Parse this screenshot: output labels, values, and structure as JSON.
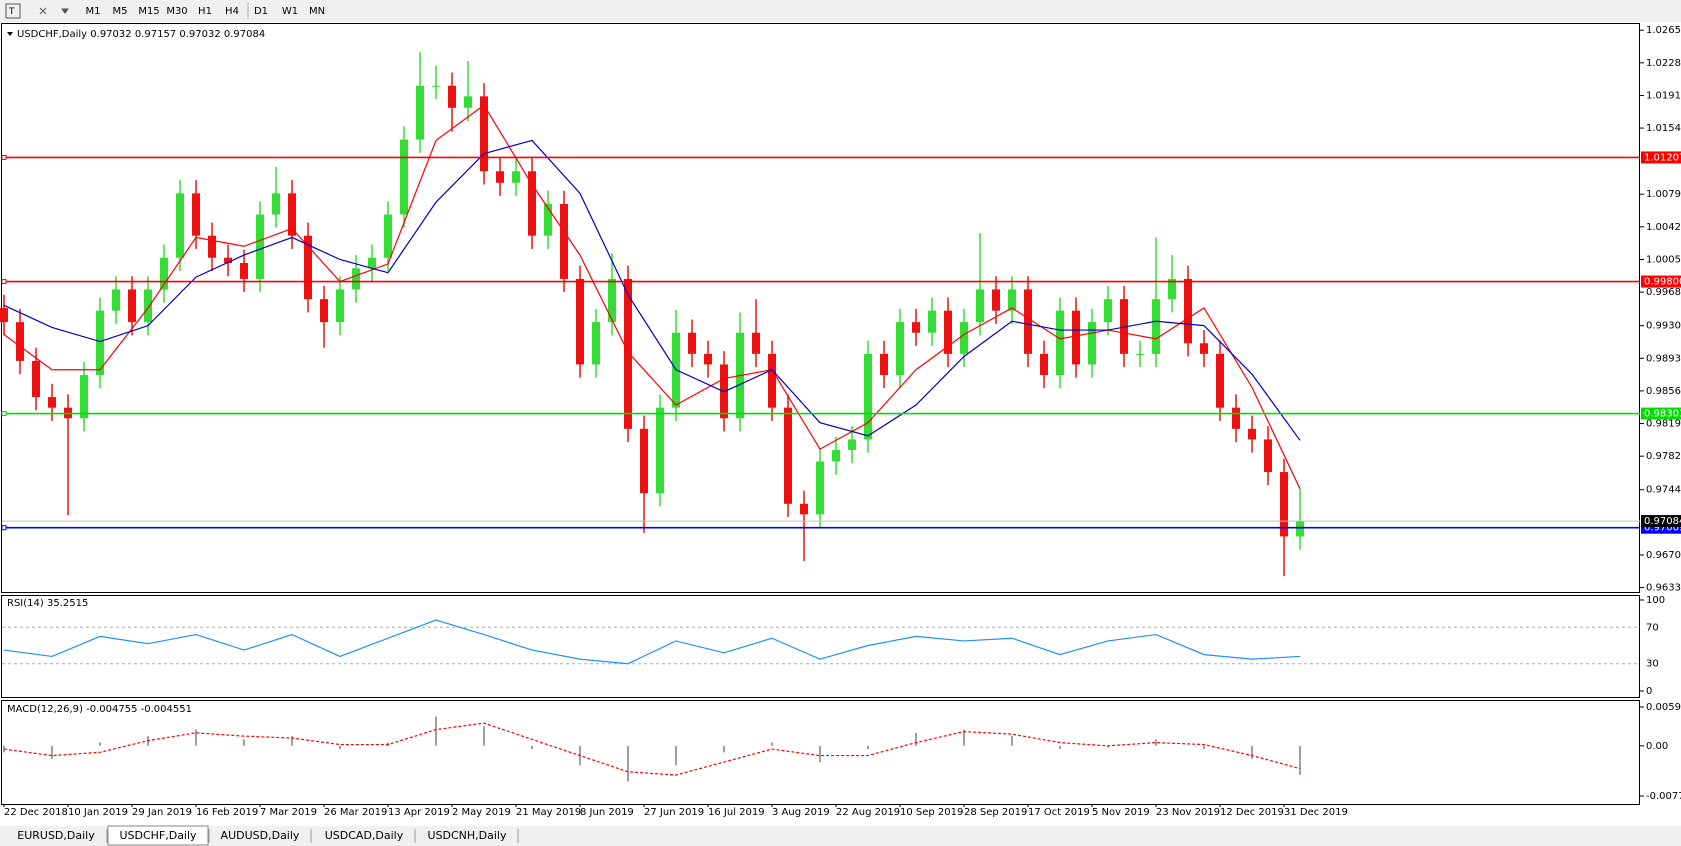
{
  "toolbar": {
    "timeframes": [
      "M1",
      "M5",
      "M15",
      "M30",
      "H1",
      "H4",
      "D1",
      "W1",
      "MN"
    ]
  },
  "tabs": [
    "EURUSD,Daily",
    "USDCHF,Daily",
    "AUDUSD,Daily",
    "USDCAD,Daily",
    "USDCNH,Daily"
  ],
  "active_tab": 1,
  "chart_data": [
    {
      "type": "candlestick",
      "title": "USDCHF,Daily  0.97032 0.97157 0.97032 0.97084",
      "categories": [
        "22 Dec 2018",
        null,
        null,
        null,
        "10 Jan 2019",
        null,
        null,
        null,
        "29 Jan 2019",
        null,
        null,
        null,
        "16 Feb 2019",
        null,
        null,
        null,
        "7 Mar 2019",
        null,
        null,
        null,
        "26 Mar 2019",
        null,
        null,
        null,
        "13 Apr 2019",
        null,
        null,
        null,
        "2 May 2019",
        null,
        null,
        null,
        "21 May 2019",
        null,
        null,
        null,
        "8 Jun 2019",
        null,
        null,
        null,
        "27 Jun 2019",
        null,
        null,
        null,
        "16 Jul 2019",
        null,
        null,
        null,
        "3 Aug 2019",
        null,
        null,
        null,
        "22 Aug 2019",
        null,
        null,
        null,
        "10 Sep 2019",
        null,
        null,
        null,
        "28 Sep 2019",
        null,
        null,
        null,
        "17 Oct 2019",
        null,
        null,
        null,
        "5 Nov 2019",
        null,
        null,
        null,
        "23 Nov 2019",
        null,
        null,
        null,
        "12 Dec 2019",
        null,
        null,
        null,
        "31 Dec 2019",
        null
      ],
      "open": [
        0.995,
        0.9934,
        0.989,
        0.9849,
        0.9837,
        0.9825,
        0.9874,
        0.9947,
        0.9971,
        0.9934,
        0.9971,
        1.0007,
        1.008,
        1.0032,
        1.0007,
        1.0001,
        0.9983,
        1.0056,
        1.008,
        1.0032,
        0.996,
        0.9934,
        0.9971,
        0.9995,
        1.0007,
        1.0056,
        1.0141,
        1.0202,
        1.0202,
        1.0177,
        1.019,
        1.0105,
        1.0092,
        1.0105,
        1.0032,
        1.0068,
        0.9983,
        0.9886,
        0.9934,
        0.9983,
        0.9813,
        0.974,
        0.9837,
        0.9922,
        0.9898,
        0.9886,
        0.9825,
        0.9922,
        0.9898,
        0.9837,
        0.9728,
        0.9716,
        0.9776,
        0.9789,
        0.9801,
        0.9898,
        0.9874,
        0.9934,
        0.9922,
        0.9947,
        0.9898,
        0.9934,
        0.9971,
        0.9947,
        0.9971,
        0.9898,
        0.9874,
        0.9947,
        0.9886,
        0.9934,
        0.996,
        0.9898,
        0.9898,
        0.996,
        0.9983,
        0.991,
        0.9898,
        0.9837,
        0.9813,
        0.9801,
        0.9764,
        0.9691
      ],
      "high": [
        0.9965,
        0.9949,
        0.9905,
        0.9864,
        0.9852,
        0.9889,
        0.9962,
        0.9986,
        0.9986,
        0.9986,
        1.0022,
        1.0095,
        1.0095,
        1.0047,
        1.0022,
        1.0016,
        1.0071,
        1.011,
        1.0095,
        1.0047,
        0.9975,
        0.9986,
        1.001,
        1.0022,
        1.0071,
        1.0156,
        1.024,
        1.0225,
        1.0217,
        1.023,
        1.0205,
        1.012,
        1.012,
        1.012,
        1.0083,
        1.0083,
        0.9998,
        0.9949,
        1.0012,
        0.9998,
        0.9828,
        0.9852,
        0.9948,
        0.9937,
        0.9913,
        0.9901,
        0.9945,
        0.996,
        0.9913,
        0.9852,
        0.9743,
        0.9791,
        0.9804,
        0.9816,
        0.9913,
        0.9913,
        0.9949,
        0.9949,
        0.9962,
        0.9962,
        0.9949,
        1.0035,
        0.9986,
        0.9986,
        0.9986,
        0.9913,
        0.9962,
        0.9962,
        0.9949,
        0.9975,
        0.9975,
        0.9913,
        1.003,
        1.001,
        0.9998,
        0.9925,
        0.9913,
        0.9852,
        0.9828,
        0.9816,
        0.9779,
        0.9745
      ],
      "low": [
        0.9919,
        0.9875,
        0.9834,
        0.9822,
        0.9715,
        0.981,
        0.9859,
        0.9932,
        0.9919,
        0.9919,
        0.9956,
        0.9992,
        1.0017,
        0.9992,
        0.9986,
        0.9968,
        0.9968,
        1.0041,
        1.0017,
        0.9945,
        0.9905,
        0.9919,
        0.9956,
        0.998,
        0.9992,
        1.0041,
        1.0126,
        1.0187,
        1.015,
        1.0162,
        1.009,
        1.0077,
        1.0077,
        1.0017,
        1.0017,
        0.9968,
        0.9871,
        0.9871,
        0.9919,
        0.9798,
        0.9695,
        0.9725,
        0.9822,
        0.9883,
        0.9871,
        0.981,
        0.981,
        0.9883,
        0.9822,
        0.9713,
        0.9663,
        0.9701,
        0.9761,
        0.9774,
        0.9786,
        0.9859,
        0.9859,
        0.9907,
        0.9907,
        0.9883,
        0.9883,
        0.9919,
        0.9932,
        0.9932,
        0.9883,
        0.9859,
        0.9859,
        0.9871,
        0.9871,
        0.9919,
        0.9883,
        0.9883,
        0.9883,
        0.9945,
        0.9895,
        0.9883,
        0.9822,
        0.9798,
        0.9786,
        0.9749,
        0.9646,
        0.9676
      ],
      "close": [
        0.9934,
        0.989,
        0.9849,
        0.9837,
        0.9825,
        0.9874,
        0.9947,
        0.9971,
        0.9934,
        0.9971,
        1.0007,
        1.008,
        1.0032,
        1.0007,
        1.0001,
        0.9983,
        1.0056,
        1.008,
        1.0032,
        0.996,
        0.9934,
        0.9971,
        0.9995,
        1.0007,
        1.0056,
        1.0141,
        1.0202,
        1.0202,
        1.0177,
        1.019,
        1.0105,
        1.0092,
        1.0105,
        1.0032,
        1.0068,
        0.9983,
        0.9886,
        0.9934,
        0.9983,
        0.9813,
        0.974,
        0.9837,
        0.9922,
        0.9898,
        0.9886,
        0.9825,
        0.9922,
        0.9898,
        0.9837,
        0.9728,
        0.9716,
        0.9776,
        0.9789,
        0.9801,
        0.9898,
        0.9874,
        0.9934,
        0.9922,
        0.9947,
        0.9898,
        0.9934,
        0.9971,
        0.9947,
        0.9971,
        0.9898,
        0.9874,
        0.9947,
        0.9886,
        0.9934,
        0.996,
        0.9898,
        0.9898,
        0.996,
        0.9983,
        0.991,
        0.9898,
        0.9837,
        0.9813,
        0.9801,
        0.9764,
        0.9691,
        0.9708
      ],
      "up_color": "#33dd33",
      "down_color": "#ee1111",
      "moving_averages": [
        {
          "color": "#ff0000",
          "x": [
            0,
            3,
            6,
            9,
            12,
            15,
            18,
            21,
            24,
            27,
            30,
            33,
            36,
            39,
            42,
            45,
            48,
            51,
            54,
            57,
            60,
            63,
            66,
            69,
            72,
            75,
            78,
            81
          ],
          "values": [
            0.992,
            0.988,
            0.988,
            0.995,
            1.003,
            1.002,
            1.004,
            0.998,
            1.0,
            1.014,
            1.018,
            1.009,
            1.001,
            0.99,
            0.984,
            0.987,
            0.988,
            0.979,
            0.982,
            0.988,
            0.992,
            0.995,
            0.9915,
            0.9925,
            0.9915,
            0.995,
            0.986,
            0.9745
          ]
        },
        {
          "color": "#0000cc",
          "x": [
            0,
            3,
            6,
            9,
            12,
            15,
            18,
            21,
            24,
            27,
            30,
            33,
            36,
            39,
            42,
            45,
            48,
            51,
            54,
            57,
            60,
            63,
            66,
            69,
            72,
            75,
            78,
            81
          ],
          "values": [
            0.9953,
            0.9928,
            0.9912,
            0.993,
            0.9985,
            1.001,
            1.003,
            1.0005,
            0.999,
            1.007,
            1.0125,
            1.014,
            1.008,
            0.9965,
            0.988,
            0.9855,
            0.988,
            0.982,
            0.9805,
            0.984,
            0.9895,
            0.9935,
            0.9925,
            0.9925,
            0.9935,
            0.993,
            0.9875,
            0.98
          ]
        }
      ],
      "levels": [
        {
          "value": 1.01207,
          "label": "1.01207",
          "color": "#ff0000"
        },
        {
          "value": 0.998,
          "label": "0.99800",
          "color": "#ff0000"
        },
        {
          "value": 0.98303,
          "label": "0.98303",
          "color": "#00dd00"
        },
        {
          "value": 0.97009,
          "label": "0.97009",
          "color": "#0000ff"
        }
      ],
      "current_price": {
        "value": 0.97084,
        "label": "0.97084"
      },
      "ylim": [
        0.9628,
        1.0272
      ],
      "yticks": [
        {
          "value": 1.0265,
          "label": "1.02650"
        },
        {
          "value": 1.0228,
          "label": "1.02280"
        },
        {
          "value": 1.0191,
          "label": "1.01910"
        },
        {
          "value": 1.0154,
          "label": "1.01540"
        },
        {
          "value": 1.0079,
          "label": "1.00790"
        },
        {
          "value": 1.0042,
          "label": "1.00420"
        },
        {
          "value": 1.0005,
          "label": "1.00050"
        },
        {
          "value": 0.9968,
          "label": "0.99680"
        },
        {
          "value": 0.993,
          "label": "0.99300"
        },
        {
          "value": 0.9893,
          "label": "0.98930"
        },
        {
          "value": 0.9856,
          "label": "0.98560"
        },
        {
          "value": 0.9819,
          "label": "0.98190"
        },
        {
          "value": 0.9782,
          "label": "0.97820"
        },
        {
          "value": 0.9744,
          "label": "0.97440"
        },
        {
          "value": 0.967,
          "label": "0.96700"
        },
        {
          "value": 0.9633,
          "label": "0.96330"
        }
      ]
    },
    {
      "type": "line",
      "title": "RSI(14) 35.2515",
      "color": "#1e90ff",
      "x": [
        0,
        3,
        6,
        9,
        12,
        15,
        18,
        21,
        24,
        27,
        30,
        33,
        36,
        39,
        42,
        45,
        48,
        51,
        54,
        57,
        60,
        63,
        66,
        69,
        72,
        75,
        78,
        81
      ],
      "values": [
        45,
        38,
        60,
        52,
        62,
        45,
        62,
        38,
        58,
        78,
        62,
        45,
        35,
        30,
        55,
        42,
        58,
        35,
        50,
        60,
        55,
        58,
        40,
        55,
        62,
        40,
        35,
        38
      ],
      "ylim": [
        0,
        100
      ],
      "yticks": [
        100,
        70,
        30,
        0
      ]
    },
    {
      "type": "macd",
      "title": "MACD(12,26,9) -0.004755 -0.004551",
      "hist_color": "#a0a0a0",
      "signal_color": "#ff0000",
      "x": [
        0,
        3,
        6,
        9,
        12,
        15,
        18,
        21,
        24,
        27,
        30,
        33,
        36,
        39,
        42,
        45,
        48,
        51,
        54,
        57,
        60,
        63,
        66,
        69,
        72,
        75,
        78,
        81
      ],
      "values": [
        -0.001,
        -0.002,
        0.0005,
        0.0015,
        0.0025,
        0.001,
        0.0015,
        -0.0005,
        0.0005,
        0.0045,
        0.003,
        -0.0005,
        -0.003,
        -0.0055,
        -0.003,
        -0.001,
        0.0005,
        -0.0025,
        -0.0005,
        0.002,
        0.0025,
        0.0015,
        -0.0005,
        -0.0003,
        0.001,
        -0.0005,
        -0.002,
        -0.0045
      ],
      "signal": [
        -0.0005,
        -0.0015,
        -0.001,
        0.0008,
        0.002,
        0.0015,
        0.0012,
        0.0002,
        0.0002,
        0.0025,
        0.0035,
        0.001,
        -0.0015,
        -0.004,
        -0.0045,
        -0.0025,
        -0.0005,
        -0.0015,
        -0.0015,
        0.0005,
        0.0022,
        0.0018,
        0.0005,
        0,
        0.0005,
        0.0002,
        -0.0015,
        -0.0035
      ],
      "ylim": [
        -0.00773,
        0.005986
      ],
      "yticks": [
        0.005986,
        {
          "value": 0,
          "label": "0.00"
        },
        -0.00773
      ]
    }
  ]
}
